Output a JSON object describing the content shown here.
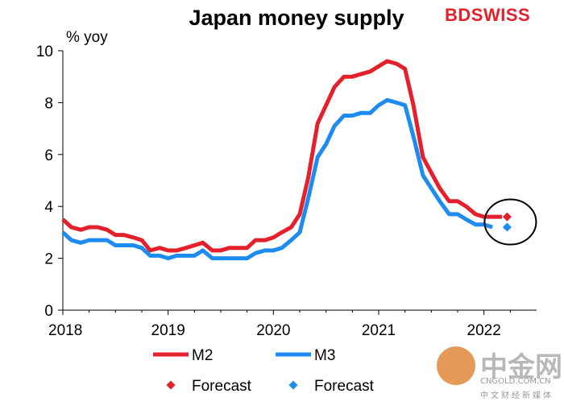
{
  "brand": {
    "bd": "BD",
    "swiss": "SWISS"
  },
  "watermark": {
    "main": "中金网",
    "url": "CNGOLD.COM.CN",
    "sub": "中文财经新媒体"
  },
  "chart_data": {
    "type": "line",
    "title": "Japan money supply",
    "ylabel": "% yoy",
    "xlabel": "",
    "xlim": [
      2018.0,
      2022.5
    ],
    "ylim": [
      0,
      10
    ],
    "yticks": [
      0,
      2,
      4,
      6,
      8,
      10
    ],
    "xticks": [
      "2018",
      "2019",
      "2020",
      "2021",
      "2022"
    ],
    "grid": false,
    "series": [
      {
        "name": "M2",
        "color": "#e3202b",
        "points": [
          [
            2018.0,
            3.5
          ],
          [
            2018.08,
            3.2
          ],
          [
            2018.17,
            3.1
          ],
          [
            2018.25,
            3.2
          ],
          [
            2018.33,
            3.2
          ],
          [
            2018.42,
            3.1
          ],
          [
            2018.5,
            2.9
          ],
          [
            2018.58,
            2.9
          ],
          [
            2018.67,
            2.8
          ],
          [
            2018.75,
            2.7
          ],
          [
            2018.83,
            2.3
          ],
          [
            2018.92,
            2.4
          ],
          [
            2019.0,
            2.3
          ],
          [
            2019.08,
            2.3
          ],
          [
            2019.17,
            2.4
          ],
          [
            2019.25,
            2.5
          ],
          [
            2019.33,
            2.6
          ],
          [
            2019.42,
            2.3
          ],
          [
            2019.5,
            2.3
          ],
          [
            2019.58,
            2.4
          ],
          [
            2019.67,
            2.4
          ],
          [
            2019.75,
            2.4
          ],
          [
            2019.83,
            2.7
          ],
          [
            2019.92,
            2.7
          ],
          [
            2020.0,
            2.8
          ],
          [
            2020.08,
            3.0
          ],
          [
            2020.17,
            3.2
          ],
          [
            2020.25,
            3.7
          ],
          [
            2020.33,
            5.1
          ],
          [
            2020.42,
            7.2
          ],
          [
            2020.5,
            7.9
          ],
          [
            2020.58,
            8.6
          ],
          [
            2020.67,
            9.0
          ],
          [
            2020.75,
            9.0
          ],
          [
            2020.83,
            9.1
          ],
          [
            2020.92,
            9.2
          ],
          [
            2021.0,
            9.4
          ],
          [
            2021.08,
            9.6
          ],
          [
            2021.17,
            9.5
          ],
          [
            2021.25,
            9.3
          ],
          [
            2021.33,
            7.9
          ],
          [
            2021.42,
            5.9
          ],
          [
            2021.5,
            5.3
          ],
          [
            2021.58,
            4.7
          ],
          [
            2021.67,
            4.2
          ],
          [
            2021.75,
            4.2
          ],
          [
            2021.83,
            4.0
          ],
          [
            2021.92,
            3.7
          ],
          [
            2022.0,
            3.6
          ],
          [
            2022.08,
            3.6
          ],
          [
            2022.17,
            3.6
          ]
        ]
      },
      {
        "name": "M3",
        "color": "#1e8bf0",
        "points": [
          [
            2018.0,
            3.0
          ],
          [
            2018.08,
            2.7
          ],
          [
            2018.17,
            2.6
          ],
          [
            2018.25,
            2.7
          ],
          [
            2018.33,
            2.7
          ],
          [
            2018.42,
            2.7
          ],
          [
            2018.5,
            2.5
          ],
          [
            2018.58,
            2.5
          ],
          [
            2018.67,
            2.5
          ],
          [
            2018.75,
            2.4
          ],
          [
            2018.83,
            2.1
          ],
          [
            2018.92,
            2.1
          ],
          [
            2019.0,
            2.0
          ],
          [
            2019.08,
            2.1
          ],
          [
            2019.17,
            2.1
          ],
          [
            2019.25,
            2.1
          ],
          [
            2019.33,
            2.3
          ],
          [
            2019.42,
            2.0
          ],
          [
            2019.5,
            2.0
          ],
          [
            2019.58,
            2.0
          ],
          [
            2019.67,
            2.0
          ],
          [
            2019.75,
            2.0
          ],
          [
            2019.83,
            2.2
          ],
          [
            2019.92,
            2.3
          ],
          [
            2020.0,
            2.3
          ],
          [
            2020.08,
            2.4
          ],
          [
            2020.17,
            2.7
          ],
          [
            2020.25,
            3.0
          ],
          [
            2020.33,
            4.3
          ],
          [
            2020.42,
            5.9
          ],
          [
            2020.5,
            6.4
          ],
          [
            2020.58,
            7.1
          ],
          [
            2020.67,
            7.5
          ],
          [
            2020.75,
            7.5
          ],
          [
            2020.83,
            7.6
          ],
          [
            2020.92,
            7.6
          ],
          [
            2021.0,
            7.9
          ],
          [
            2021.08,
            8.1
          ],
          [
            2021.17,
            8.0
          ],
          [
            2021.25,
            7.9
          ],
          [
            2021.33,
            6.7
          ],
          [
            2021.42,
            5.2
          ],
          [
            2021.5,
            4.7
          ],
          [
            2021.58,
            4.2
          ],
          [
            2021.67,
            3.7
          ],
          [
            2021.75,
            3.7
          ],
          [
            2021.83,
            3.5
          ],
          [
            2021.92,
            3.3
          ],
          [
            2022.0,
            3.3
          ],
          [
            2022.08,
            3.2
          ]
        ]
      }
    ],
    "forecasts": [
      {
        "name": "Forecast",
        "color": "#e3202b",
        "x": 2022.22,
        "y": 3.6
      },
      {
        "name": "Forecast",
        "color": "#1e8bf0",
        "x": 2022.22,
        "y": 3.2
      }
    ],
    "annotation": {
      "type": "circle",
      "x": 2022.22,
      "y": 3.4
    },
    "legend_placement": "bottom"
  }
}
